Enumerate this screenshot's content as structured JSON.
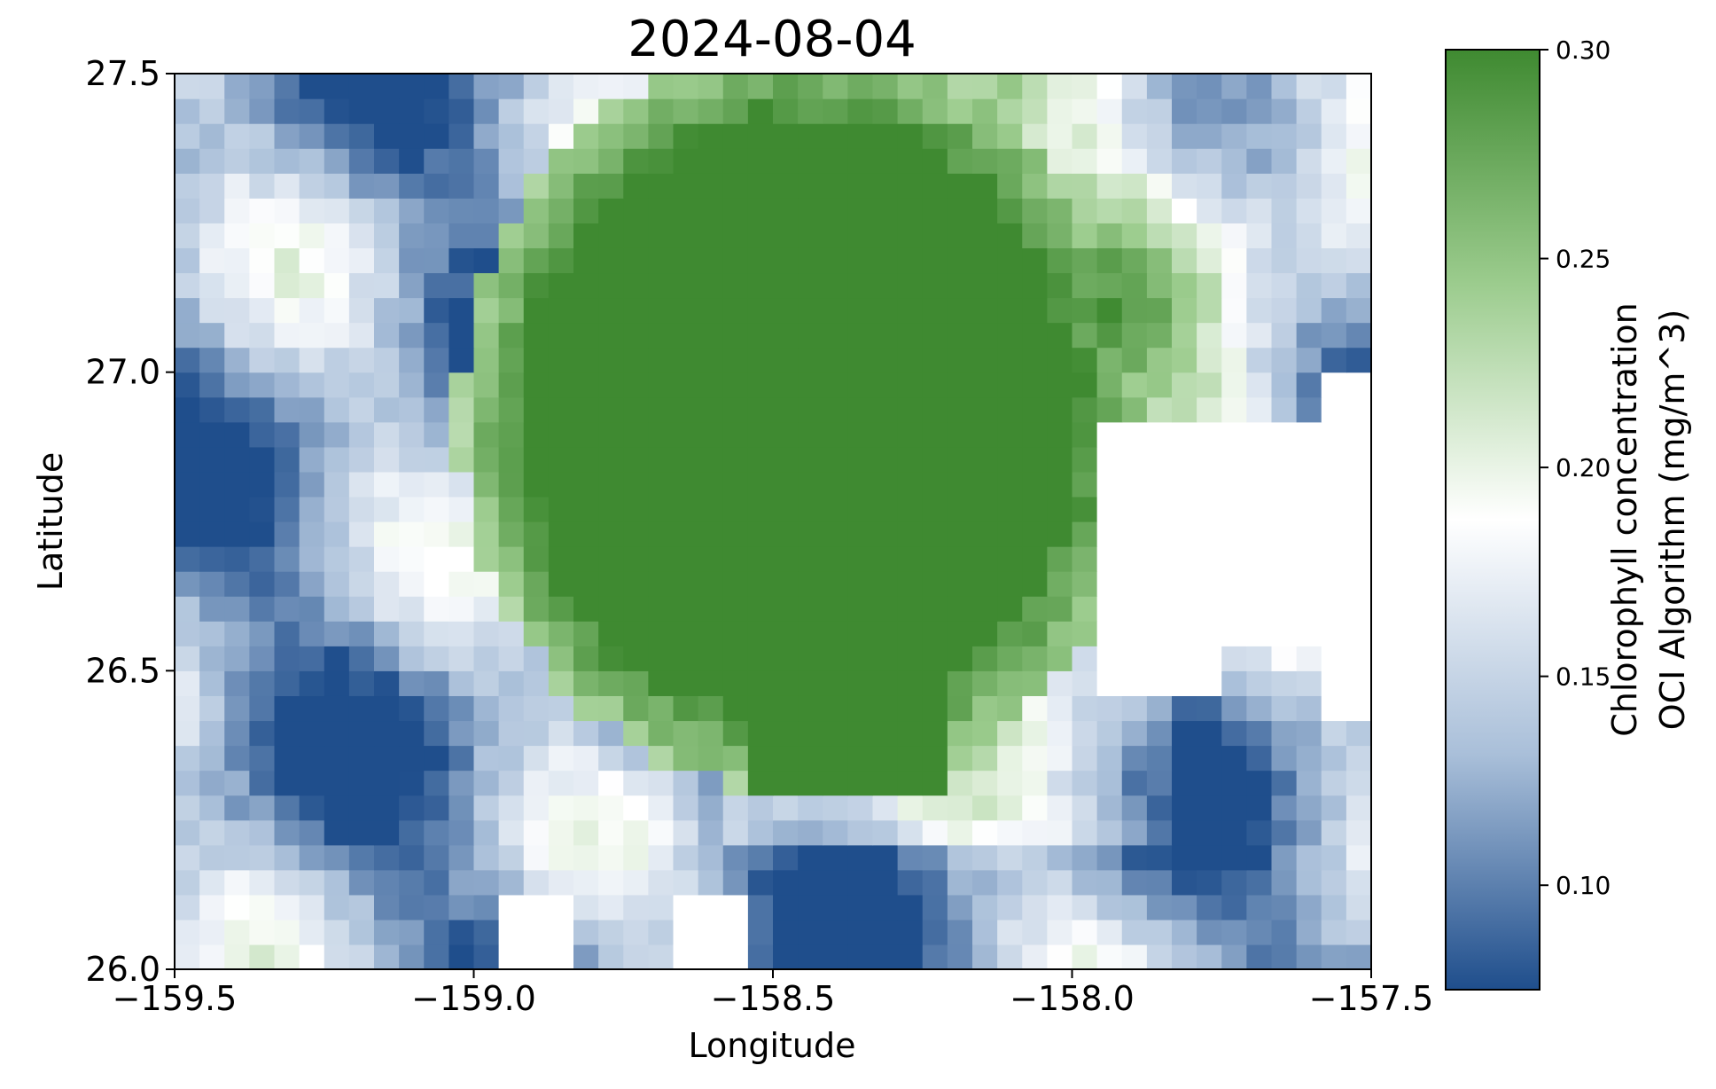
{
  "chart_data": {
    "type": "heatmap",
    "title": "2024-08-04",
    "xlabel": "Longitude",
    "ylabel": "Latitude",
    "xlim": [
      -159.5,
      -157.5
    ],
    "ylim": [
      26.0,
      27.5
    ],
    "xticks": [
      -159.5,
      -159.0,
      -158.5,
      -158.0,
      -157.5
    ],
    "xtick_labels": [
      "−159.5",
      "−159.0",
      "−158.5",
      "−158.0",
      "−157.5"
    ],
    "yticks": [
      26.0,
      26.5,
      27.0,
      27.5
    ],
    "ytick_labels": [
      "26.0",
      "26.5",
      "27.0",
      "27.5"
    ],
    "grid": false,
    "colorbar": {
      "label_lines": [
        "Chlorophyll concentration",
        "OCI Algorithm (mg/m^3)"
      ],
      "vmin": 0.075,
      "vmax": 0.3,
      "ticks": [
        0.1,
        0.15,
        0.2,
        0.25,
        0.3
      ],
      "tick_labels": [
        "0.10",
        "0.15",
        "0.20",
        "0.25",
        "0.30"
      ],
      "colors": [
        "#1f4e8c",
        "#a9bfd9",
        "#ffffff",
        "#9ccc8e",
        "#3f8a31"
      ]
    },
    "grid_shape": {
      "nx": 48,
      "ny": 36,
      "lon_step": 0.041667,
      "lat_step": 0.041667
    },
    "field_description": "Gridded chlorophyll-a concentration; a roughly circular patch of saturated high values (>=0.30 mg/m^3) centered near -158.45, 26.95 with radius about 0.45 deg; elevated green values (0.22-0.28) extending east toward -157.7; low blue values (0.08-0.15) on the western and southern margins; missing (white) pixels in the eastern region near -157.8, 26.6-26.9 and scattered along the southern edge."
  }
}
